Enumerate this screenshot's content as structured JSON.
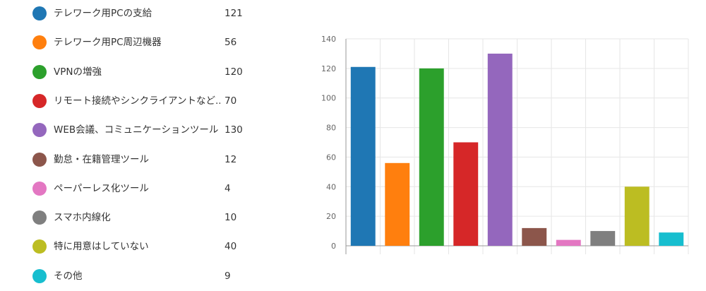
{
  "chart_data": {
    "type": "bar",
    "categories": [
      "テレワーク用PCの支給",
      "テレワーク用PC周辺機器",
      "VPNの増強",
      "リモート接続やシンクライアントなど...",
      "WEB会議、コミュニケーションツール",
      "勤怠・在籍管理ツール",
      "ペーパーレス化ツール",
      "スマホ内線化",
      "特に用意はしていない",
      "その他"
    ],
    "values": [
      121,
      56,
      120,
      70,
      130,
      12,
      4,
      10,
      40,
      9
    ],
    "colors": [
      "#1f77b4",
      "#ff7f0e",
      "#2ca02c",
      "#d62728",
      "#9467bd",
      "#8c564b",
      "#e377c2",
      "#7f7f7f",
      "#bcbd22",
      "#17becf"
    ],
    "ylim": [
      0,
      140
    ],
    "yticks": [
      "140",
      "120",
      "100",
      "80",
      "60",
      "40",
      "20",
      "0"
    ],
    "grid": true,
    "legend_position": "left",
    "title": "",
    "xlabel": "",
    "ylabel": ""
  }
}
